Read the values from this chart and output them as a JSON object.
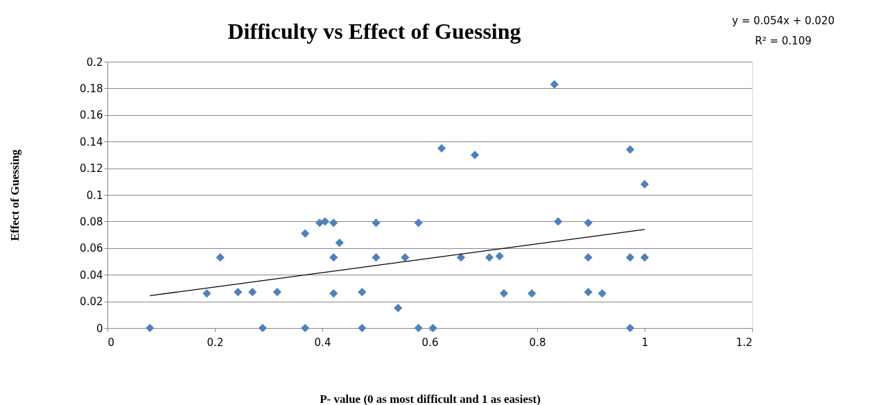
{
  "chart_data": {
    "type": "scatter",
    "title": "Difficulty vs Effect of Guessing",
    "xlabel": "P- value (0 as most difficult and 1 as easiest)",
    "ylabel": "Effect of Guessing",
    "annotations": [
      "y = 0.054x + 0.020",
      "R² = 0.109"
    ],
    "xlim": [
      0,
      1.2
    ],
    "xticks": [
      0,
      0.2,
      0.4,
      0.6,
      0.8,
      1,
      1.2
    ],
    "ylim": [
      0,
      0.2
    ],
    "yticks": [
      0,
      0.02,
      0.04,
      0.06,
      0.08,
      0.1,
      0.12,
      0.14,
      0.16,
      0.18,
      0.2
    ],
    "grid": "y",
    "series": [
      {
        "color": "#4f81bd",
        "marker": "diamond",
        "x": [
          0.079,
          0.185,
          0.21,
          0.243,
          0.27,
          0.289,
          0.316,
          0.368,
          0.368,
          0.395,
          0.405,
          0.421,
          0.421,
          0.421,
          0.432,
          0.474,
          0.474,
          0.5,
          0.5,
          0.541,
          0.554,
          0.579,
          0.579,
          0.606,
          0.622,
          0.658,
          0.684,
          0.711,
          0.73,
          0.738,
          0.79,
          0.832,
          0.839,
          0.895,
          0.895,
          0.895,
          0.921,
          0.973,
          0.973,
          0.973,
          1.0,
          1.0
        ],
        "values": [
          0,
          0.026,
          0.053,
          0.027,
          0.027,
          0,
          0.027,
          0.071,
          0,
          0.079,
          0.08,
          0.079,
          0.053,
          0.026,
          0.064,
          0.027,
          0,
          0.079,
          0.053,
          0.015,
          0.053,
          0.079,
          0,
          0,
          0.135,
          0.053,
          0.13,
          0.053,
          0.054,
          0.026,
          0.026,
          0.183,
          0.08,
          0.079,
          0.053,
          0.027,
          0.026,
          0.134,
          0.053,
          0,
          0.108,
          0.053
        ]
      },
      {
        "type": "line",
        "color": "#000000",
        "x": [
          0.079,
          1.0
        ],
        "values": [
          0.0243,
          0.074
        ]
      }
    ]
  }
}
